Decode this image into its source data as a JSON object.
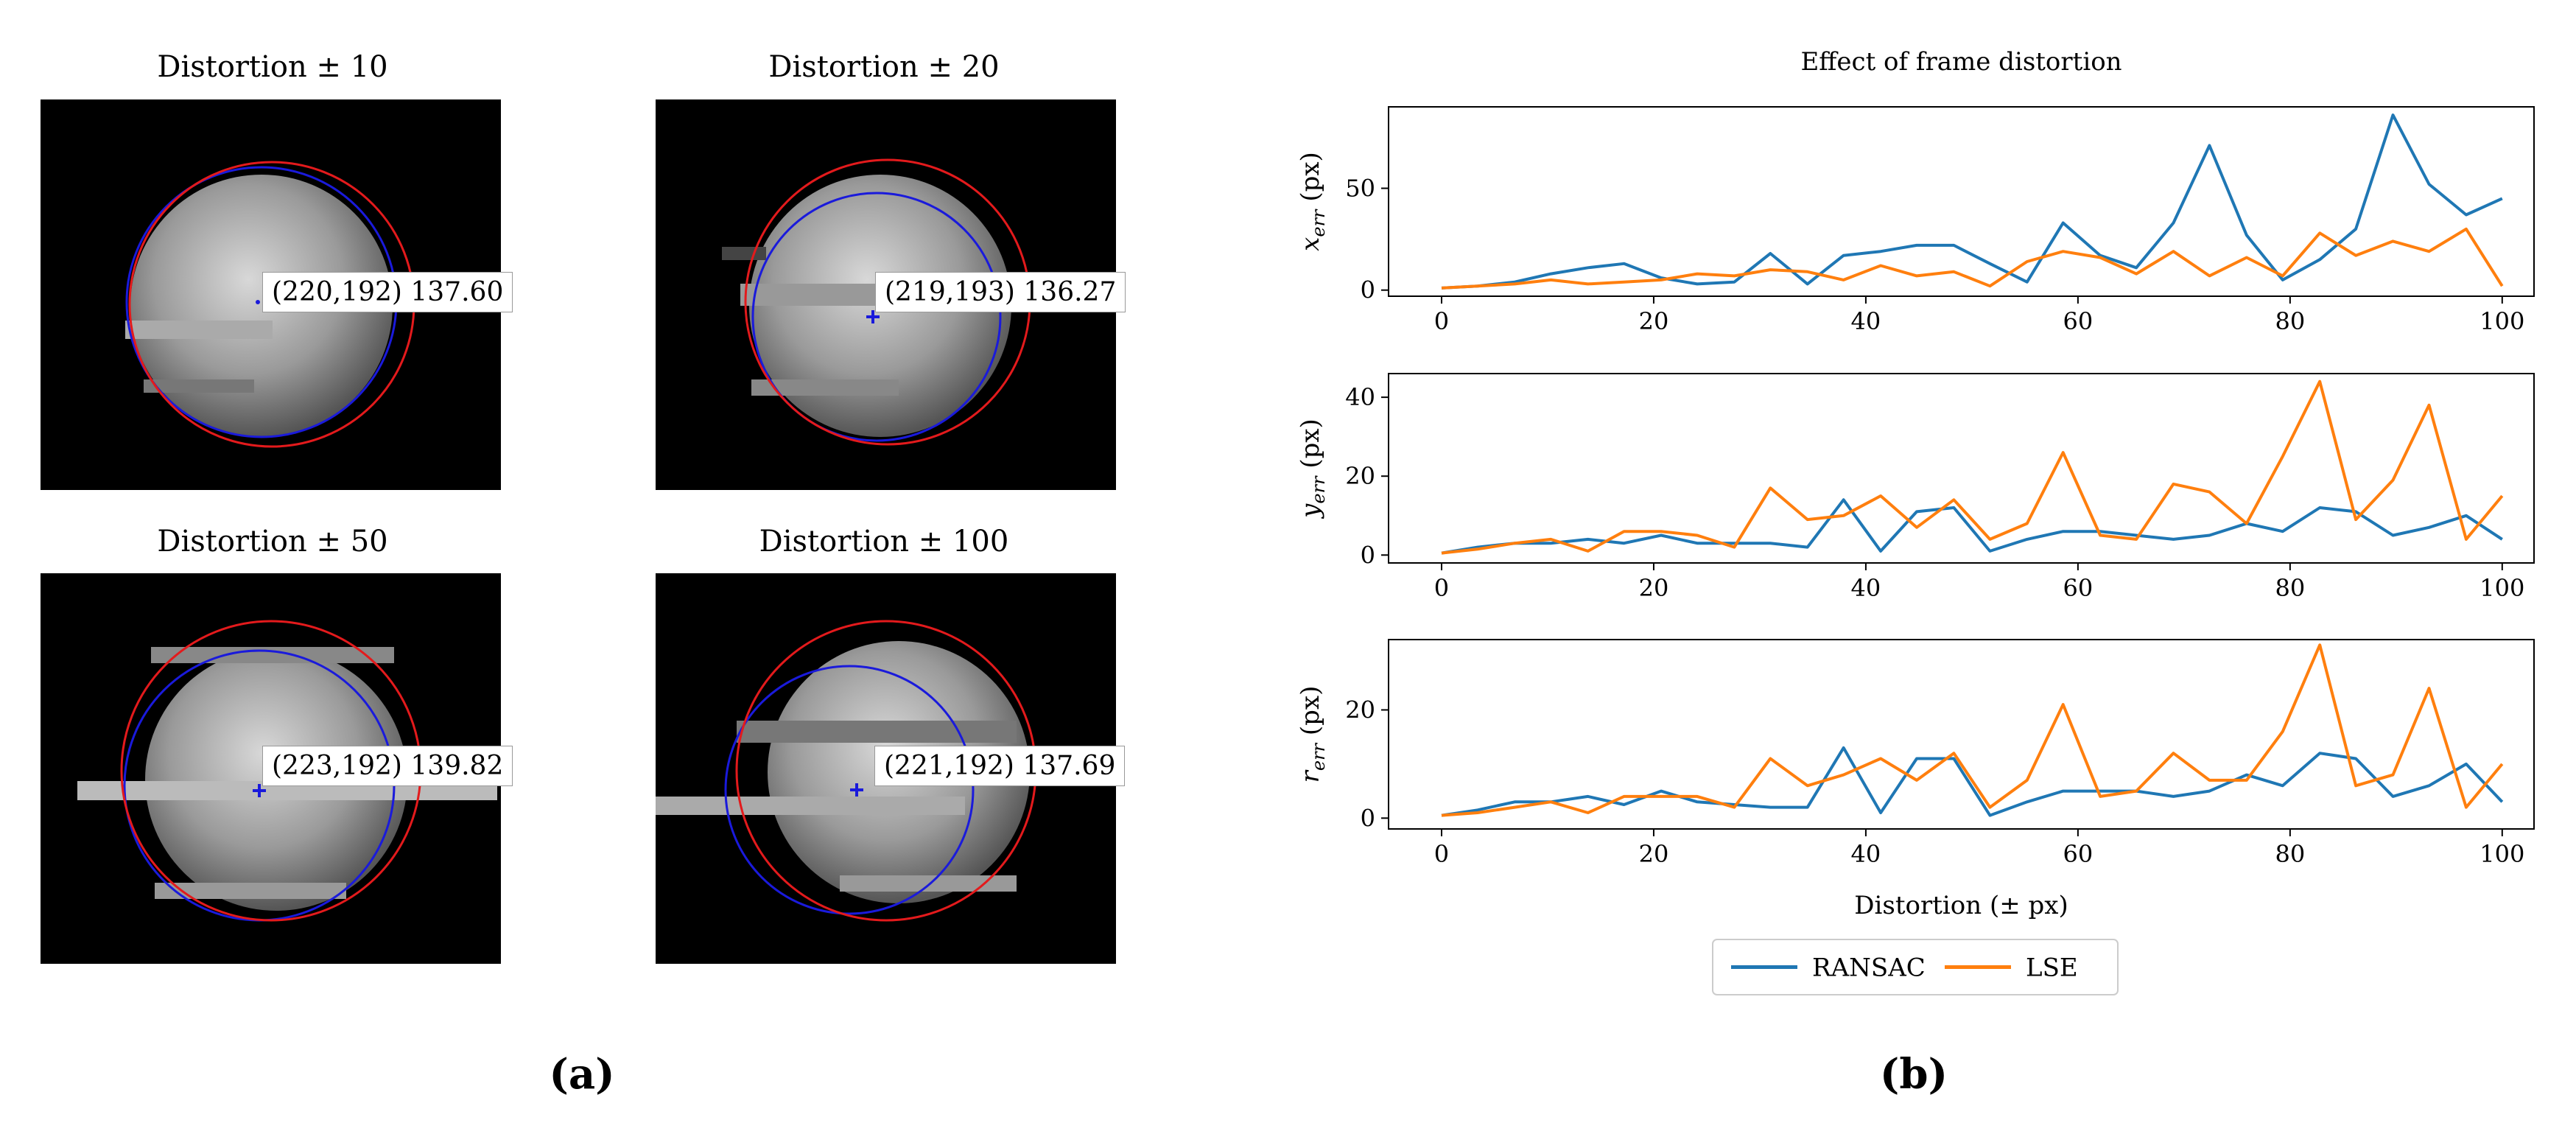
{
  "left_panel": {
    "caption": "(a)",
    "images": [
      {
        "title": "Distortion ± 10",
        "readout": "(220,192) 137.60"
      },
      {
        "title": "Distortion ± 20",
        "readout": "(219,193) 136.27"
      },
      {
        "title": "Distortion ± 50",
        "readout": "(223,192) 139.82"
      },
      {
        "title": "Distortion ± 100",
        "readout": "(221,192) 137.69"
      }
    ]
  },
  "right_panel": {
    "caption": "(b)"
  },
  "colors": {
    "ransac": "#1f77b4",
    "lse": "#ff7f0e",
    "fit_red": "#e31a1c",
    "fit_blue": "#1a1adb"
  },
  "chart_data": {
    "type": "line",
    "title": "Effect of frame distortion",
    "xlabel": "Distortion (± px)",
    "xlim": [
      -5,
      103
    ],
    "x": [
      0,
      3.4,
      6.9,
      10.3,
      13.8,
      17.2,
      20.7,
      24.1,
      27.6,
      31.0,
      34.5,
      37.9,
      41.4,
      44.8,
      48.3,
      51.7,
      55.2,
      58.6,
      62.1,
      65.5,
      69.0,
      72.4,
      75.9,
      79.3,
      82.8,
      86.2,
      89.7,
      93.1,
      96.6,
      100
    ],
    "xticks": [
      0,
      20,
      40,
      60,
      80,
      100
    ],
    "legend": [
      "RANSAC",
      "LSE"
    ],
    "subplots": [
      {
        "ylabel_main": "x",
        "ylabel_sub": "err",
        "ylabel_unit": "(px)",
        "ylim": [
          -3,
          90
        ],
        "yticks": [
          0,
          50
        ],
        "series": [
          {
            "name": "RANSAC",
            "values": [
              1,
              2,
              4,
              8,
              11,
              13,
              6,
              3,
              4,
              18,
              3,
              17,
              19,
              22,
              22,
              13,
              4,
              33,
              17,
              11,
              33,
              71,
              27,
              5,
              15,
              30,
              86,
              52,
              37,
              45
            ]
          },
          {
            "name": "LSE",
            "values": [
              1,
              2,
              3,
              5,
              3,
              4,
              5,
              8,
              7,
              10,
              9,
              5,
              12,
              7,
              9,
              2,
              14,
              19,
              16,
              8,
              19,
              7,
              16,
              7,
              28,
              17,
              24,
              19,
              30,
              2
            ]
          }
        ]
      },
      {
        "ylabel_main": "y",
        "ylabel_sub": "err",
        "ylabel_unit": "(px)",
        "ylim": [
          -2,
          46
        ],
        "yticks": [
          0,
          20,
          40
        ],
        "series": [
          {
            "name": "RANSAC",
            "values": [
              0.5,
              2,
              3,
              3,
              4,
              3,
              5,
              3,
              3,
              3,
              2,
              14,
              1,
              11,
              12,
              1,
              4,
              6,
              6,
              5,
              4,
              5,
              8,
              6,
              12,
              11,
              5,
              7,
              10,
              4
            ]
          },
          {
            "name": "LSE",
            "values": [
              0.5,
              1.5,
              3,
              4,
              1,
              6,
              6,
              5,
              2,
              17,
              9,
              10,
              15,
              7,
              14,
              4,
              8,
              26,
              5,
              4,
              18,
              16,
              8,
              25,
              44,
              9,
              19,
              38,
              4,
              15
            ]
          }
        ]
      },
      {
        "ylabel_main": "r",
        "ylabel_sub": "err",
        "ylabel_unit": "(px)",
        "ylim": [
          -2,
          33
        ],
        "yticks": [
          0,
          20
        ],
        "series": [
          {
            "name": "RANSAC",
            "values": [
              0.5,
              1.5,
              3,
              3,
              4,
              2.5,
              5,
              3,
              2.5,
              2,
              2,
              13,
              1,
              11,
              11,
              0.5,
              3,
              5,
              5,
              5,
              4,
              5,
              8,
              6,
              12,
              11,
              4,
              6,
              10,
              3
            ]
          },
          {
            "name": "LSE",
            "values": [
              0.5,
              1,
              2,
              3,
              1,
              4,
              4,
              4,
              2,
              11,
              6,
              8,
              11,
              7,
              12,
              2,
              7,
              21,
              4,
              5,
              12,
              7,
              7,
              16,
              32,
              6,
              8,
              24,
              2,
              10
            ]
          }
        ]
      }
    ]
  }
}
